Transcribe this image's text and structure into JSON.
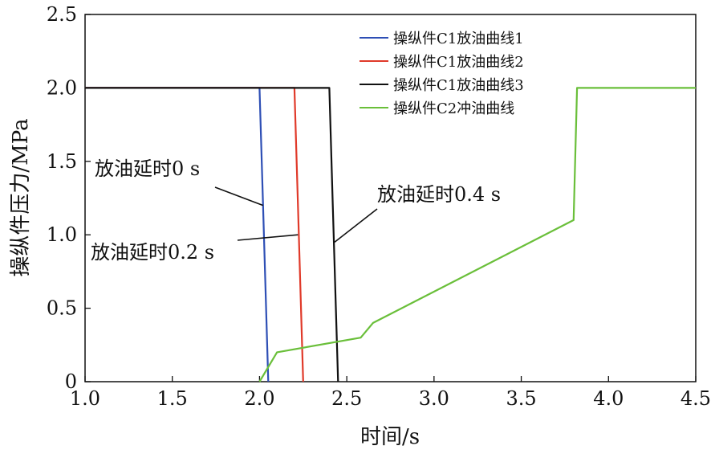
{
  "chart_data": {
    "type": "line",
    "title": "",
    "xlabel": "时间/s",
    "ylabel": "操纵件压力/MPa",
    "xlim": [
      1.0,
      4.5
    ],
    "ylim": [
      0,
      2.5
    ],
    "xticks": [
      1.0,
      1.5,
      2.0,
      2.5,
      3.0,
      3.5,
      4.0,
      4.5
    ],
    "xtick_labels": [
      "1.0",
      "1.5",
      "2.0",
      "2.5",
      "3.0",
      "3.5",
      "4.0",
      "4.5"
    ],
    "yticks": [
      0,
      0.5,
      1.0,
      1.5,
      2.0,
      2.5
    ],
    "ytick_labels": [
      "0",
      "0.5",
      "1.0",
      "1.5",
      "2.0",
      "2.5"
    ],
    "grid": false,
    "legend_position": "top-right",
    "series": [
      {
        "name": "操纵件C1放油曲线1",
        "color": "#2e4fb5",
        "x": [
          1.0,
          2.0,
          2.02,
          2.05
        ],
        "y": [
          2.0,
          2.0,
          1.2,
          0
        ]
      },
      {
        "name": "操纵件C1放油曲线2",
        "color": "#e03a2a",
        "x": [
          1.0,
          2.2,
          2.22,
          2.25
        ],
        "y": [
          2.0,
          2.0,
          1.2,
          0
        ]
      },
      {
        "name": "操纵件C1放油曲线3",
        "color": "#111111",
        "x": [
          1.0,
          2.4,
          2.42,
          2.45
        ],
        "y": [
          2.0,
          2.0,
          1.2,
          0
        ]
      },
      {
        "name": "操纵件C2冲油曲线",
        "color": "#6abf3a",
        "x": [
          2.0,
          2.1,
          2.58,
          2.65,
          3.8,
          3.82,
          4.5
        ],
        "y": [
          0,
          0.2,
          0.3,
          0.4,
          1.1,
          2.0,
          2.0
        ]
      }
    ],
    "annotations": [
      {
        "text": "放油延时0 s",
        "target_x": 2.02,
        "target_y": 1.2
      },
      {
        "text": "放油延时0.2 s",
        "target_x": 2.22,
        "target_y": 1.0
      },
      {
        "text": "放油延时0.4 s",
        "target_x": 2.43,
        "target_y": 0.95
      }
    ]
  }
}
